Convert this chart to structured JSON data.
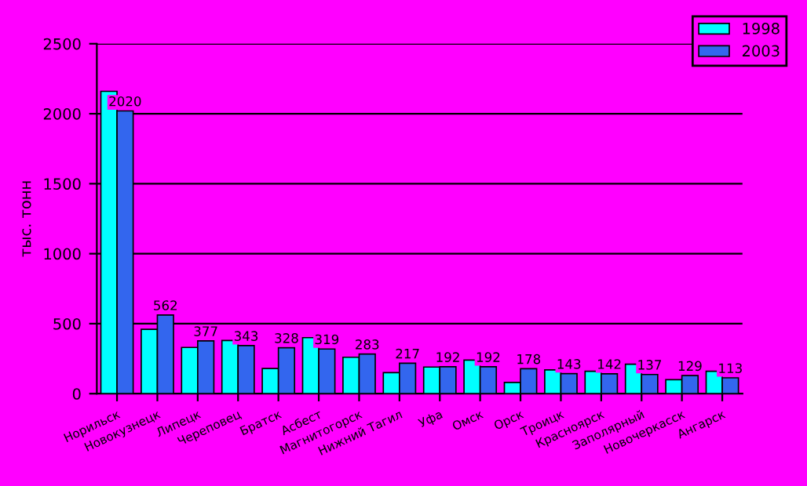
{
  "chart_data": {
    "type": "bar",
    "ylabel": "тыс. тонн",
    "categories": [
      "Норильск",
      "Новокузнецк",
      "Липецк",
      "Череповец",
      "Братск",
      "Асбест",
      "Магнитогорск",
      "Нижний Тагил",
      "Уфа",
      "Омск",
      "Орск",
      "Троицк",
      "Красноярск",
      "Заполярный",
      "Новочеркасск",
      "Ангарск"
    ],
    "series": [
      {
        "name": "1998",
        "color": "#00ffff",
        "values": [
          2160,
          460,
          330,
          380,
          180,
          400,
          260,
          150,
          190,
          240,
          80,
          170,
          160,
          210,
          100,
          160
        ]
      },
      {
        "name": "2003",
        "color": "#3366ee",
        "values": [
          2020,
          562,
          377,
          343,
          328,
          319,
          283,
          217,
          192,
          192,
          178,
          143,
          142,
          137,
          129,
          113
        ],
        "value_labels": [
          "2020",
          "562",
          "377",
          "343",
          "328",
          "319",
          "283",
          "217",
          "192",
          "192",
          "178",
          "143",
          "142",
          "137",
          "129",
          "113"
        ]
      }
    ],
    "ylim": [
      0,
      2500
    ],
    "yticks": [
      0,
      500,
      1000,
      1500,
      2000,
      2500
    ],
    "grid": "y",
    "legend": "top right"
  }
}
